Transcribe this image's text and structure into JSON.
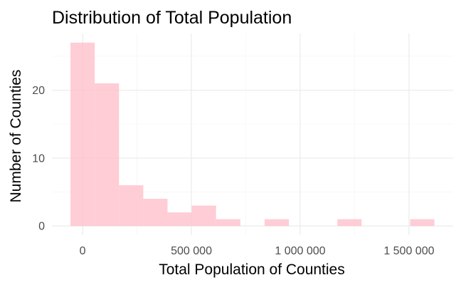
{
  "chart_data": {
    "type": "histogram",
    "title": "Distribution of Total Population",
    "xlabel": "Total Population of Counties",
    "ylabel": "Number of Counties",
    "bin_width": 111500,
    "bins": [
      {
        "x0": -55750,
        "x1": 55750,
        "count": 27
      },
      {
        "x0": 55750,
        "x1": 167250,
        "count": 21
      },
      {
        "x0": 167250,
        "x1": 278750,
        "count": 6
      },
      {
        "x0": 278750,
        "x1": 390250,
        "count": 4
      },
      {
        "x0": 390250,
        "x1": 501750,
        "count": 2
      },
      {
        "x0": 501750,
        "x1": 613250,
        "count": 3
      },
      {
        "x0": 613250,
        "x1": 724750,
        "count": 1
      },
      {
        "x0": 724750,
        "x1": 836250,
        "count": 0
      },
      {
        "x0": 836250,
        "x1": 947750,
        "count": 1
      },
      {
        "x0": 947750,
        "x1": 1059250,
        "count": 0
      },
      {
        "x0": 1059250,
        "x1": 1170750,
        "count": 0
      },
      {
        "x0": 1170750,
        "x1": 1282250,
        "count": 1
      },
      {
        "x0": 1282250,
        "x1": 1393750,
        "count": 0
      },
      {
        "x0": 1393750,
        "x1": 1505250,
        "count": 0
      },
      {
        "x0": 1505250,
        "x1": 1616750,
        "count": 1
      }
    ],
    "xlim": [
      -141000,
      1703000
    ],
    "ylim": [
      -1.35,
      28.35
    ],
    "x_ticks": [
      {
        "value": 0,
        "label": "0"
      },
      {
        "value": 500000,
        "label": "500 000"
      },
      {
        "value": 1000000,
        "label": "1 000 000"
      },
      {
        "value": 1500000,
        "label": "1 500 000"
      }
    ],
    "y_ticks": [
      {
        "value": 0,
        "label": "0"
      },
      {
        "value": 10,
        "label": "10"
      },
      {
        "value": 20,
        "label": "20"
      }
    ],
    "x_minor_ticks": [
      250000,
      750000,
      1250000
    ],
    "y_minor_ticks": [
      5,
      15,
      25
    ],
    "grid": true,
    "bar_color": "#ffc0cb",
    "bar_opacity": 0.8
  }
}
